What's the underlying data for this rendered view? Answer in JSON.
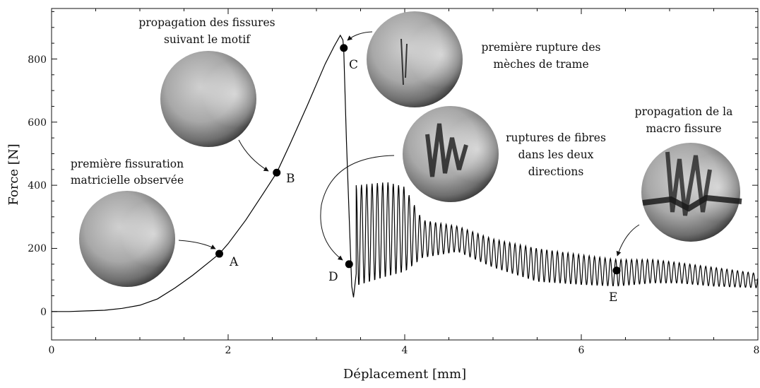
{
  "chart_data": {
    "type": "line",
    "title": "",
    "xlabel": "Déplacement [mm]",
    "ylabel": "Force [N]",
    "xlim": [
      0,
      8
    ],
    "ylim": [
      -90,
      960
    ],
    "xticks": [
      0,
      2,
      4,
      6,
      8
    ],
    "yticks": [
      0,
      200,
      400,
      600,
      800
    ],
    "grid": false,
    "legend": "none",
    "line_color": "#000000",
    "series": [
      {
        "x": [
          0,
          0.2,
          0.4,
          0.6,
          0.8,
          1.0,
          1.2,
          1.4,
          1.6,
          1.8,
          1.9,
          2.0,
          2.2,
          2.4,
          2.55,
          2.7,
          2.9,
          3.0,
          3.1,
          3.2,
          3.27,
          3.3,
          3.31,
          3.34,
          3.38,
          3.4,
          3.42,
          3.45
        ],
        "y": [
          0,
          0,
          2,
          4,
          10,
          20,
          40,
          75,
          115,
          160,
          183,
          215,
          290,
          375,
          440,
          530,
          655,
          720,
          785,
          840,
          875,
          860,
          820,
          540,
          230,
          80,
          45,
          120
        ],
        "oscillation": {
          "x_start": 3.45,
          "x_end": 8.0,
          "period": 0.06,
          "envelope": {
            "x": [
              3.45,
              3.8,
              4.0,
              4.2,
              4.6,
              5.0,
              5.5,
              6.0,
              6.4,
              6.8,
              7.1,
              7.5,
              8.0
            ],
            "upper": [
              400,
              410,
              395,
              290,
              270,
              230,
              200,
              180,
              165,
              165,
              155,
              140,
              120
            ],
            "lower": [
              80,
              110,
              125,
              170,
              190,
              140,
              95,
              85,
              80,
              90,
              90,
              80,
              75
            ]
          }
        }
      }
    ],
    "points": [
      {
        "label": "A",
        "x": 1.9,
        "y": 183
      },
      {
        "label": "B",
        "x": 2.55,
        "y": 440
      },
      {
        "label": "C",
        "x": 3.31,
        "y": 835
      },
      {
        "label": "D",
        "x": 3.37,
        "y": 150
      },
      {
        "label": "E",
        "x": 6.4,
        "y": 130
      }
    ],
    "annotations": [
      {
        "target": "A",
        "lines": [
          "première fissuration",
          "matricielle observée"
        ]
      },
      {
        "target": "B",
        "lines": [
          "propagation des fissures",
          "suivant le motif"
        ]
      },
      {
        "target": "C",
        "lines": [
          "première rupture des",
          "mèches de trame"
        ]
      },
      {
        "target": "D",
        "lines": [
          "ruptures de fibres",
          "dans les deux",
          "directions"
        ]
      },
      {
        "target": "E",
        "lines": [
          "propagation de la",
          "macro fissure"
        ]
      }
    ]
  }
}
